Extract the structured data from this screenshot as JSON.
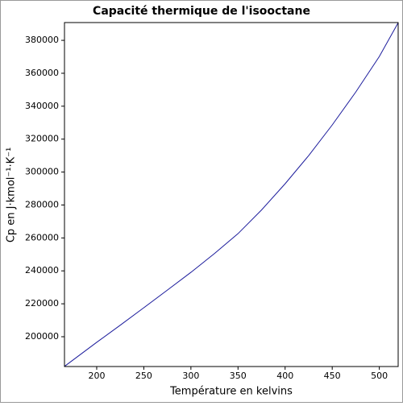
{
  "chart_data": {
    "type": "line",
    "title": "Capacité thermique de l'isooctane",
    "x_label": "Température en kelvins",
    "y_label": "Cp en J·kmol⁻¹·K⁻¹",
    "x": [
      165.8,
      200,
      225,
      250,
      275,
      300,
      325,
      350,
      375,
      400,
      425,
      450,
      475,
      500,
      520
    ],
    "series": [
      {
        "name": "Cp",
        "color": "#1c1c9c",
        "values": [
          182000,
          196600,
          207000,
          217600,
          228300,
          239100,
          250500,
          262600,
          277000,
          292900,
          310000,
          328600,
          348600,
          370200,
          390700
        ]
      }
    ],
    "xlim": [
      165.8,
      520
    ],
    "xticks": [
      200,
      250,
      300,
      350,
      400,
      450,
      500
    ],
    "ylim": [
      181900,
      390800
    ],
    "yticks": [
      200000,
      220000,
      240000,
      260000,
      280000,
      300000,
      320000,
      340000,
      360000,
      380000
    ],
    "grid": false
  }
}
